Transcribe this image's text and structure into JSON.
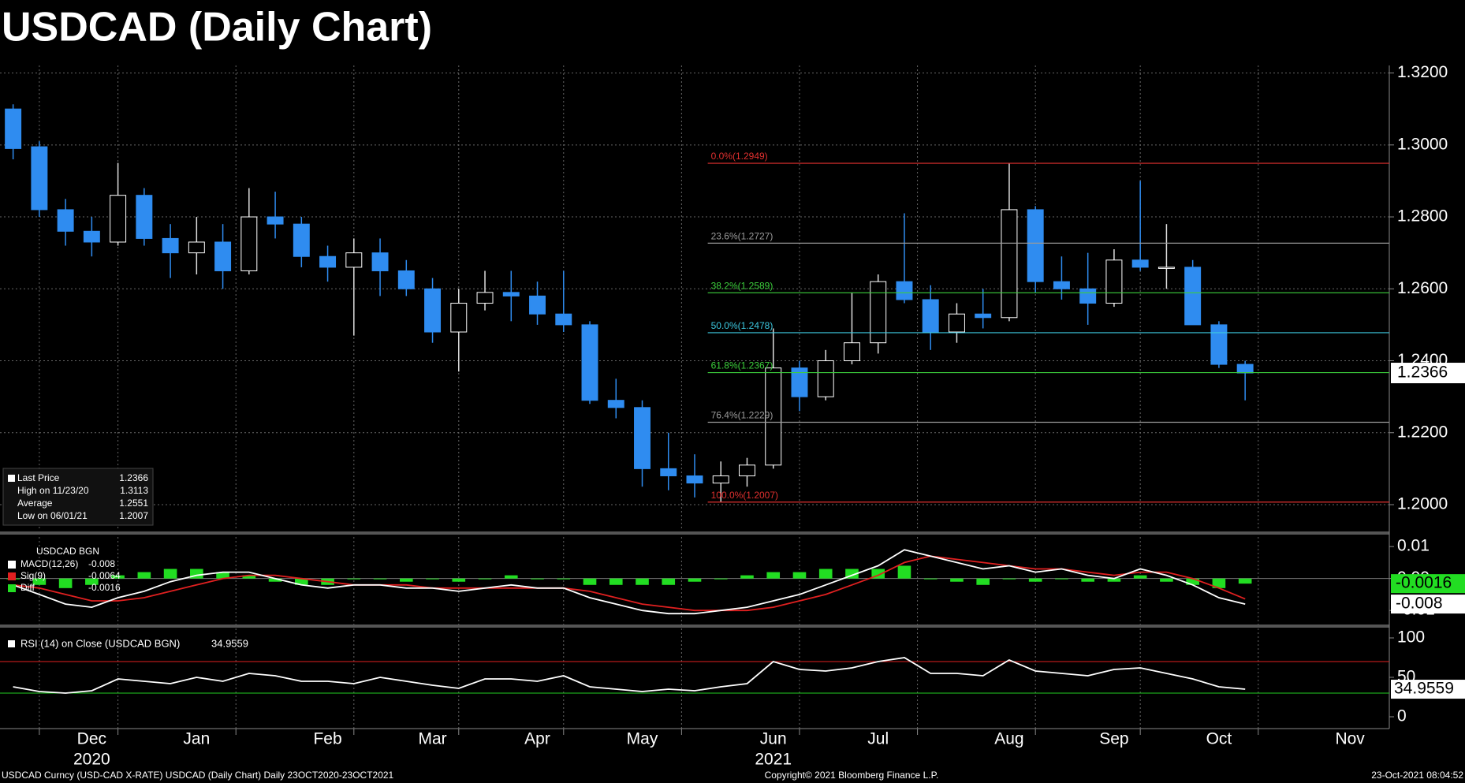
{
  "chart_data": [
    {
      "type": "candlestick",
      "title": "USDCAD (Daily Chart)",
      "categories": [
        null,
        null,
        null,
        "Dec",
        null,
        null,
        null,
        "Jan",
        null,
        null,
        null,
        null,
        "Feb",
        null,
        null,
        null,
        "Mar",
        null,
        null,
        null,
        "Apr",
        null,
        null,
        null,
        "May",
        null,
        null,
        null,
        null,
        "Jun",
        null,
        null,
        null,
        "Jul",
        null,
        null,
        null,
        null,
        "Aug",
        null,
        null,
        null,
        "Sep",
        null,
        null,
        null,
        "Oct",
        null,
        null,
        null,
        null,
        "Nov",
        null
      ],
      "years": [
        null,
        null,
        null,
        "2020",
        null,
        null,
        null,
        null,
        null,
        null,
        null,
        null,
        null,
        null,
        null,
        null,
        null,
        null,
        null,
        null,
        null,
        null,
        null,
        null,
        null,
        null,
        null,
        null,
        null,
        "2021",
        null,
        null,
        null,
        null,
        null,
        null,
        null,
        null,
        null,
        null,
        null,
        null,
        null,
        null,
        null,
        null,
        null,
        null,
        null,
        null,
        null,
        null,
        null
      ],
      "open": [
        1.31,
        1.2995,
        1.282,
        1.276,
        1.273,
        1.286,
        1.274,
        1.27,
        1.273,
        1.265,
        1.28,
        1.278,
        1.269,
        1.266,
        1.27,
        1.265,
        1.26,
        1.248,
        1.256,
        1.259,
        1.258,
        1.253,
        1.25,
        1.229,
        1.227,
        1.21,
        1.208,
        1.206,
        1.208,
        1.211,
        1.238,
        1.23,
        1.24,
        1.245,
        1.262,
        1.257,
        1.248,
        1.253,
        1.252,
        1.282,
        1.262,
        1.26,
        1.256,
        1.268,
        1.266,
        1.266,
        1.25,
        1.239,
        null,
        null,
        null,
        null,
        null
      ],
      "high": [
        1.3113,
        1.301,
        1.285,
        1.28,
        1.295,
        1.288,
        1.278,
        1.28,
        1.278,
        1.288,
        1.287,
        1.28,
        1.272,
        1.274,
        1.274,
        1.268,
        1.263,
        1.26,
        1.265,
        1.265,
        1.262,
        1.265,
        1.251,
        1.235,
        1.229,
        1.22,
        1.214,
        1.212,
        1.213,
        1.249,
        1.24,
        1.243,
        1.259,
        1.264,
        1.281,
        1.261,
        1.256,
        1.26,
        1.2949,
        1.283,
        1.269,
        1.27,
        1.271,
        1.29,
        1.278,
        1.268,
        1.251,
        1.24,
        null,
        null,
        null,
        null,
        null
      ],
      "low": [
        1.296,
        1.28,
        1.272,
        1.269,
        1.272,
        1.272,
        1.263,
        1.264,
        1.26,
        1.264,
        1.274,
        1.266,
        1.262,
        1.247,
        1.258,
        1.258,
        1.245,
        1.237,
        1.254,
        1.251,
        1.25,
        1.248,
        1.228,
        1.224,
        1.205,
        1.204,
        1.202,
        1.2007,
        1.205,
        1.21,
        1.226,
        1.229,
        1.239,
        1.242,
        1.256,
        1.243,
        1.245,
        1.249,
        1.251,
        1.259,
        1.257,
        1.25,
        1.255,
        1.265,
        1.26,
        1.25,
        1.238,
        1.229,
        null,
        null,
        null,
        null,
        null
      ],
      "close": [
        1.299,
        1.282,
        1.276,
        1.273,
        1.286,
        1.274,
        1.27,
        1.273,
        1.265,
        1.28,
        1.278,
        1.269,
        1.266,
        1.27,
        1.265,
        1.26,
        1.248,
        1.256,
        1.259,
        1.258,
        1.253,
        1.25,
        1.229,
        1.227,
        1.21,
        1.208,
        1.206,
        1.208,
        1.211,
        1.238,
        1.23,
        1.24,
        1.245,
        1.262,
        1.257,
        1.248,
        1.253,
        1.252,
        1.282,
        1.262,
        1.26,
        1.256,
        1.268,
        1.266,
        1.266,
        1.25,
        1.239,
        1.2366,
        null,
        null,
        null,
        null,
        null
      ],
      "up_color": "#ffffff",
      "down_color": "#2f8cf0",
      "ylim": [
        1.1932,
        1.3221
      ],
      "yticks": [
        {
          "value": 1.2,
          "label": "1.2000"
        },
        {
          "value": 1.22,
          "label": "1.2200"
        },
        {
          "value": 1.24,
          "label": "1.2400"
        },
        {
          "value": 1.26,
          "label": "1.2600"
        },
        {
          "value": 1.28,
          "label": "1.2800"
        },
        {
          "value": 1.3,
          "label": "1.3000"
        },
        {
          "value": 1.32,
          "label": "1.3200"
        }
      ],
      "grid": true,
      "fib_levels": [
        {
          "label": "0.0%(1.2949)",
          "value": 1.2949,
          "color": "#e0302f"
        },
        {
          "label": "23.6%(1.2727)",
          "value": 1.2727,
          "color": "#9a9a9a"
        },
        {
          "label": "38.2%(1.2589)",
          "value": 1.2589,
          "color": "#3ccf3c"
        },
        {
          "label": "50.0%(1.2478)",
          "value": 1.2478,
          "color": "#3cc8e0"
        },
        {
          "label": "61.8%(1.2367)",
          "value": 1.2367,
          "color": "#3ccf3c"
        },
        {
          "label": "76.4%(1.2229)",
          "value": 1.2229,
          "color": "#9a9a9a"
        },
        {
          "label": "100.0%(1.2007)",
          "value": 1.2007,
          "color": "#e0302f"
        }
      ],
      "stats": [
        {
          "name": "Last Price",
          "value": 1.2366
        },
        {
          "name": "High on 11/23/20",
          "value": 1.3113
        },
        {
          "name": "Average",
          "value": 1.2551
        },
        {
          "name": "Low on 06/01/21",
          "value": 1.2007
        }
      ]
    },
    {
      "type": "macd",
      "title": "USDCAD BGN",
      "series": [
        {
          "name": "MACD(12,26)",
          "last": -0.008,
          "color": "#ffffff",
          "values": [
            -0.002,
            -0.005,
            -0.008,
            -0.009,
            -0.006,
            -0.004,
            -0.001,
            0.001,
            0.002,
            0.002,
            0.0,
            -0.002,
            -0.003,
            -0.002,
            -0.002,
            -0.003,
            -0.003,
            -0.004,
            -0.003,
            -0.002,
            -0.003,
            -0.003,
            -0.006,
            -0.008,
            -0.01,
            -0.011,
            -0.011,
            -0.01,
            -0.009,
            -0.007,
            -0.005,
            -0.002,
            0.001,
            0.004,
            0.009,
            0.007,
            0.005,
            0.003,
            0.004,
            0.002,
            0.003,
            0.001,
            0.0,
            0.003,
            0.001,
            -0.002,
            -0.006,
            -0.008,
            null,
            null,
            null,
            null,
            null
          ]
        },
        {
          "name": "Sig(9)",
          "last": -0.0064,
          "color": "#e02020",
          "values": [
            -0.002,
            -0.003,
            -0.005,
            -0.007,
            -0.007,
            -0.006,
            -0.004,
            -0.002,
            0.0,
            0.001,
            0.001,
            0.0,
            -0.001,
            -0.002,
            -0.002,
            -0.002,
            -0.003,
            -0.003,
            -0.003,
            -0.003,
            -0.003,
            -0.003,
            -0.004,
            -0.006,
            -0.008,
            -0.009,
            -0.01,
            -0.01,
            -0.01,
            -0.009,
            -0.007,
            -0.005,
            -0.002,
            0.001,
            0.005,
            0.007,
            0.006,
            0.005,
            0.004,
            0.003,
            0.003,
            0.002,
            0.001,
            0.002,
            0.002,
            0.0,
            -0.003,
            -0.0064,
            null,
            null,
            null,
            null,
            null
          ]
        },
        {
          "name": "Diff",
          "last": -0.0016,
          "color": "#22dd22",
          "values": [
            0.0,
            -0.002,
            -0.003,
            -0.002,
            0.001,
            0.002,
            0.003,
            0.003,
            0.002,
            0.001,
            -0.001,
            -0.002,
            -0.002,
            0.0,
            0.0,
            -0.001,
            0.0,
            -0.001,
            0.0,
            0.001,
            0.0,
            0.0,
            -0.002,
            -0.002,
            -0.002,
            -0.002,
            -0.001,
            0.0,
            0.001,
            0.002,
            0.002,
            0.003,
            0.003,
            0.003,
            0.004,
            0.0,
            -0.001,
            -0.002,
            0.0,
            -0.001,
            0.0,
            -0.001,
            -0.001,
            0.001,
            -0.001,
            -0.002,
            -0.003,
            -0.0016,
            null,
            null,
            null,
            null,
            null
          ]
        }
      ],
      "ylim": [
        -0.0144,
        0.013
      ],
      "yticks": [
        -0.01,
        {
          "value": 0,
          "label": "0.00"
        },
        0.01
      ]
    },
    {
      "type": "rsi",
      "title": "RSI (14)  on Close (USDCAD BGN)",
      "last": 34.9559,
      "color": "#ffffff",
      "values": [
        38,
        32,
        30,
        33,
        48,
        45,
        42,
        50,
        45,
        55,
        52,
        45,
        45,
        42,
        50,
        45,
        40,
        36,
        48,
        48,
        45,
        52,
        38,
        35,
        32,
        35,
        33,
        38,
        42,
        70,
        60,
        58,
        62,
        70,
        75,
        55,
        55,
        52,
        72,
        58,
        55,
        52,
        60,
        62,
        55,
        48,
        38,
        34.9559,
        null,
        null,
        null,
        null,
        null
      ],
      "levels": [
        {
          "value": 70,
          "color": "#e02020"
        },
        {
          "value": 30,
          "color": "#22cc22"
        }
      ],
      "ylim": [
        -15,
        112
      ],
      "yticks": [
        0,
        50,
        100
      ]
    }
  ],
  "footer": {
    "left": "USDCAD Curncy (USD-CAD X-RATE) USDCAD (Daily Chart)  Daily 23OCT2020-23OCT2021",
    "center": "Copyright© 2021 Bloomberg Finance L.P.",
    "right": "23-Oct-2021 08:04:52"
  }
}
